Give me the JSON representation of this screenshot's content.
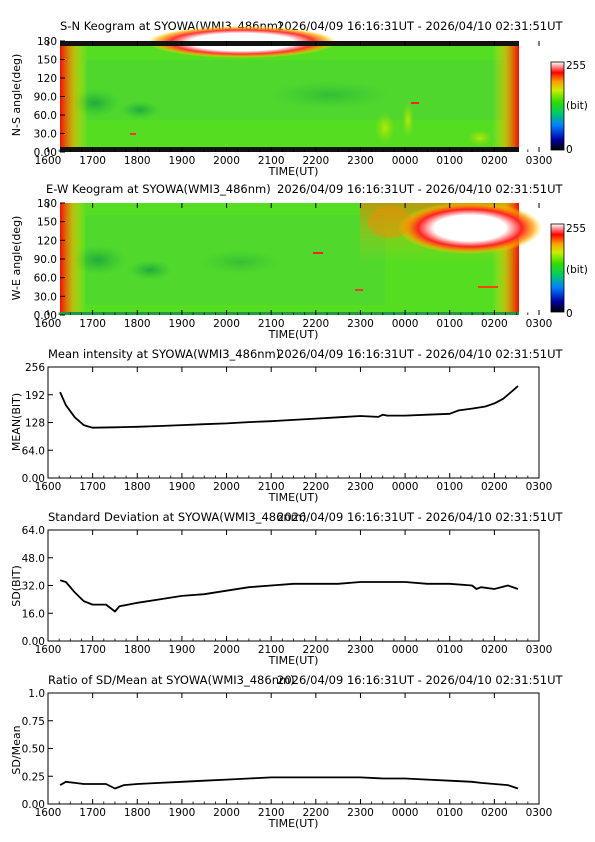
{
  "time_range": "2026/04/09 16:16:31UT - 2026/04/10 02:31:51UT",
  "x_ticks": [
    "1600",
    "1700",
    "1800",
    "1900",
    "2000",
    "2100",
    "2200",
    "2300",
    "0000",
    "0100",
    "0200",
    "0300"
  ],
  "x_label": "TIME(UT)",
  "colorbar": {
    "max_label": "255",
    "unit_label": "(bit)",
    "min_label": "0"
  },
  "chart_data": [
    {
      "id": "sn",
      "type": "heatmap",
      "title": "S-N Keogram at SYOWA(WMI3_486nm)",
      "ylabel": "N-S angle(deg)",
      "yticks": [
        "0.00",
        "30.0",
        "60.0",
        "90.0",
        "120",
        "150",
        "180"
      ],
      "ylim": [
        0,
        180
      ],
      "time_range_utc": [
        "16:16:31",
        "02:31:51"
      ],
      "description_values": {
        "background_level": "mid (green)",
        "bright_region": {
          "angle_deg": [
            160,
            180
          ],
          "time_utc": [
            "17:40",
            "21:20"
          ],
          "level": "saturated (white)"
        },
        "edge_brightening": "red near start and end times"
      }
    },
    {
      "id": "ew",
      "type": "heatmap",
      "title": "E-W Keogram at SYOWA(WMI3_486nm)",
      "ylabel": "W-E angle(deg)",
      "yticks": [
        "0.00",
        "30.0",
        "60.0",
        "90.0",
        "120",
        "150",
        "180"
      ],
      "ylim": [
        0,
        180
      ],
      "time_range_utc": [
        "16:16:31",
        "02:31:51"
      ],
      "description_values": {
        "background_level": "mid (green)",
        "bright_region": {
          "angle_deg": [
            120,
            160
          ],
          "time_utc": [
            "00:20",
            "02:10"
          ],
          "level": "saturated (white)"
        },
        "edge_brightening": "red near start and end times"
      }
    },
    {
      "id": "mean",
      "type": "line",
      "title": "Mean intensity at SYOWA(WMI3_486nm)",
      "xlabel": "TIME(UT)",
      "ylabel": "MEAN(BIT)",
      "yticks": [
        "0.00",
        "64.0",
        "128",
        "192",
        "256"
      ],
      "ylim": [
        0,
        256
      ],
      "x_hours": [
        16.27,
        16.4,
        16.6,
        16.8,
        17.0,
        17.5,
        18.0,
        18.5,
        19.0,
        19.5,
        20.0,
        20.5,
        21.0,
        21.5,
        22.0,
        22.5,
        23.0,
        23.4,
        23.5,
        23.6,
        24.0,
        24.5,
        25.0,
        25.2,
        25.5,
        25.8,
        26.0,
        26.2,
        26.53
      ],
      "values": [
        198,
        168,
        140,
        122,
        116,
        117,
        118,
        120,
        122,
        124,
        126,
        129,
        131,
        134,
        137,
        140,
        143,
        141,
        146,
        144,
        144,
        146,
        148,
        156,
        160,
        165,
        172,
        183,
        212
      ]
    },
    {
      "id": "sd",
      "type": "line",
      "title": "Standard Deviation at SYOWA(WMI3_486nm)",
      "xlabel": "TIME(UT)",
      "ylabel": "SD(BIT)",
      "yticks": [
        "0.00",
        "16.0",
        "32.0",
        "48.0",
        "64.0"
      ],
      "ylim": [
        0,
        64
      ],
      "x_hours": [
        16.27,
        16.4,
        16.6,
        16.8,
        17.0,
        17.3,
        17.5,
        17.6,
        17.8,
        18.0,
        18.5,
        19.0,
        19.5,
        20.0,
        20.5,
        21.0,
        21.5,
        22.0,
        22.5,
        23.0,
        23.5,
        24.0,
        24.5,
        25.0,
        25.5,
        25.6,
        25.7,
        26.0,
        26.3,
        26.53
      ],
      "values": [
        35,
        34,
        28,
        23,
        21,
        21,
        17,
        20,
        21,
        22,
        24,
        26,
        27,
        29,
        31,
        32,
        33,
        33,
        33,
        34,
        34,
        34,
        33,
        33,
        32,
        30,
        31,
        30,
        32,
        30
      ]
    },
    {
      "id": "ratio",
      "type": "line",
      "title": "Ratio of SD/Mean at SYOWA(WMI3_486nm)",
      "xlabel": "TIME(UT)",
      "ylabel": "SD/Mean",
      "yticks": [
        "0.00",
        "0.25",
        "0.50",
        "0.75",
        "1.0"
      ],
      "ylim": [
        0,
        1
      ],
      "x_hours": [
        16.27,
        16.4,
        16.6,
        16.8,
        17.0,
        17.3,
        17.5,
        17.7,
        18.0,
        18.5,
        19.0,
        19.5,
        20.0,
        20.5,
        21.0,
        21.5,
        22.0,
        22.5,
        23.0,
        23.5,
        24.0,
        24.5,
        25.0,
        25.5,
        25.7,
        26.0,
        26.3,
        26.53
      ],
      "values": [
        0.17,
        0.2,
        0.19,
        0.18,
        0.18,
        0.18,
        0.14,
        0.17,
        0.18,
        0.19,
        0.2,
        0.21,
        0.22,
        0.23,
        0.24,
        0.24,
        0.24,
        0.24,
        0.24,
        0.23,
        0.23,
        0.22,
        0.21,
        0.2,
        0.19,
        0.18,
        0.17,
        0.14
      ]
    }
  ]
}
